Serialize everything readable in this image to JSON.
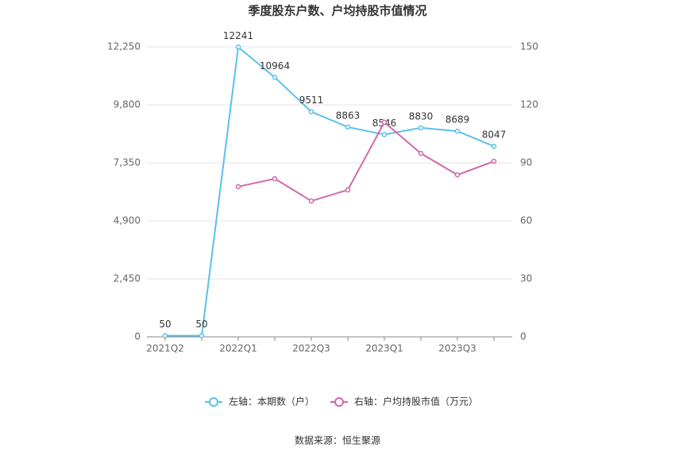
{
  "chart_data": {
    "type": "line",
    "title": "季度股东户数、户均持股市值情况",
    "categories": [
      "2021Q2",
      null,
      "2022Q1",
      null,
      "2022Q3",
      null,
      "2023Q1",
      null,
      "2023Q3",
      null
    ],
    "series": [
      {
        "name": "左轴：本期数（户）",
        "color": "#5bc0eb",
        "values": [
          50,
          50,
          12241,
          10964,
          9511,
          8863,
          8546,
          8830,
          8689,
          8047
        ]
      },
      {
        "name": "右轴：户均持股市值（万元）",
        "color": "#d267a8",
        "axis": "y2",
        "values": [
          null,
          null,
          77.7,
          81.8,
          70.3,
          76.0,
          111.0,
          94.9,
          83.8,
          90.8
        ]
      }
    ],
    "ylim": [
      0,
      12250
    ],
    "yticks": [
      0,
      {
        "value": 2450,
        "label": "2,450"
      },
      {
        "value": 4900,
        "label": "4,900"
      },
      {
        "value": 7350,
        "label": "7,350"
      },
      {
        "value": 9800,
        "label": "9,800"
      },
      {
        "value": 12250,
        "label": "12,250"
      }
    ],
    "y2lim": [
      0,
      150
    ],
    "y2ticks": [
      0,
      30,
      60,
      90,
      120,
      150
    ],
    "grid": true,
    "legend": "bottom",
    "source": "数据来源：恒生聚源"
  }
}
